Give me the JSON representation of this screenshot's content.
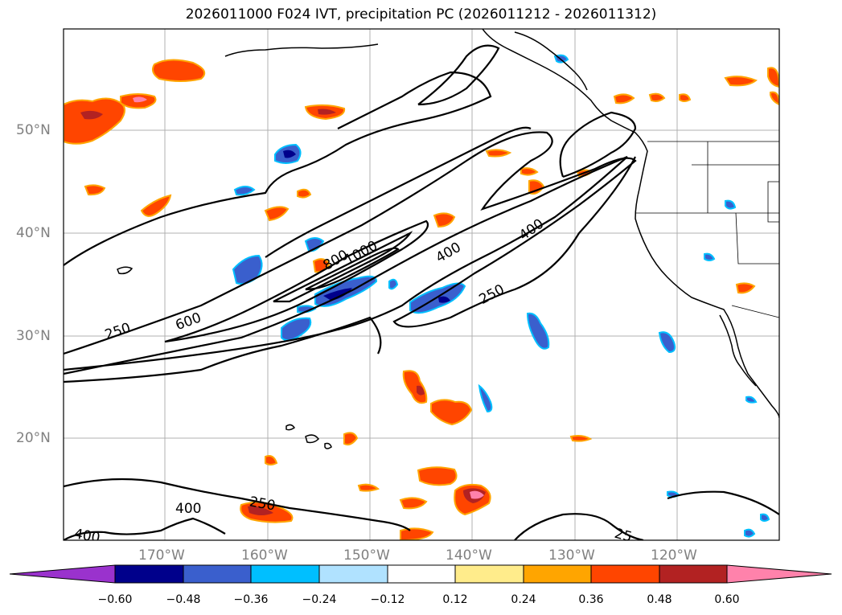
{
  "title": "2026011000 F024 IVT, precipitation PC (2026011212 - 2026011312)",
  "latitude_labels": [
    "50°N",
    "40°N",
    "30°N",
    "20°N"
  ],
  "longitude_labels": [
    "170°W",
    "160°W",
    "150°W",
    "140°W",
    "130°W",
    "120°W"
  ],
  "colorbar": {
    "ticks": [
      "−0.60",
      "−0.48",
      "−0.36",
      "−0.24",
      "−0.12",
      "0.12",
      "0.24",
      "0.36",
      "0.48",
      "0.60"
    ],
    "colors": [
      "#9a32cd",
      "#00008b",
      "#3a5fcd",
      "#00bfff",
      "#b0e2ff",
      "#ffffff",
      "#ffec8b",
      "#ffa500",
      "#ff4500",
      "#b22222",
      "#ff82ab"
    ]
  },
  "contour_labels": [
    "250",
    "600",
    "800",
    "1000",
    "400",
    "400",
    "250",
    "250",
    "400",
    "400",
    "25"
  ],
  "map_colors": {
    "grid": "#b0b0b0",
    "coast": "#000000",
    "contour": "#000000"
  }
}
